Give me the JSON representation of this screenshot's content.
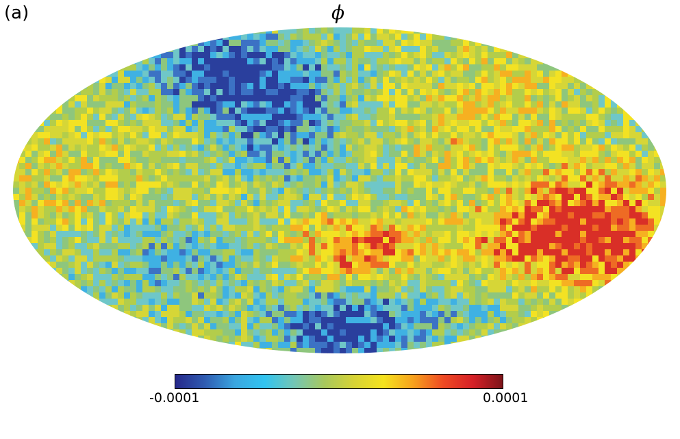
{
  "panel_label": "(a)",
  "title": "ϕ",
  "colorbar": {
    "min_label": "-0.0001",
    "max_label": "0.0001",
    "colors": [
      "#26288a",
      "#2f5cb2",
      "#3aa6e0",
      "#31c4f0",
      "#74c6b4",
      "#a7c85d",
      "#d6d336",
      "#f5e31e",
      "#f7a11d",
      "#ef4a23",
      "#d62027",
      "#7c1419"
    ]
  },
  "map": {
    "projection": "Mollweide",
    "pixel_colors": [
      "#2a3f9d",
      "#3c72c4",
      "#3fb1e3",
      "#6fc7c8",
      "#8ec67d",
      "#b3cd4b",
      "#d6d637",
      "#f3e223",
      "#f6b021",
      "#ee6b24",
      "#d92f27"
    ]
  }
}
